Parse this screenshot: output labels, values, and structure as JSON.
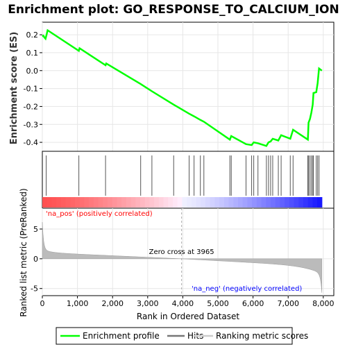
{
  "chart_data": {
    "type": "line",
    "title": "Enrichment plot: GO_RESPONSE_TO_CALCIUM_ION",
    "top_panel": {
      "ylabel": "Enrichment score (ES)",
      "ylim": [
        -0.45,
        0.27
      ],
      "yticks": [
        "0.2",
        "0.1",
        "0.0",
        "-0.1",
        "-0.2",
        "-0.3",
        "-0.4"
      ],
      "ytick_values": [
        0.2,
        0.1,
        0.0,
        -0.1,
        -0.2,
        -0.3,
        -0.4
      ],
      "grid": true,
      "series": [
        {
          "name": "Enrichment profile",
          "color": "#00ff00",
          "x": [
            0,
            30,
            60,
            90,
            120,
            150,
            1040,
            1060,
            1800,
            1820,
            2800,
            3120,
            3740,
            4180,
            4320,
            4500,
            4600,
            5340,
            5380,
            5800,
            5960,
            6020,
            6140,
            6380,
            6440,
            6500,
            6560,
            6720,
            6800,
            7060,
            7140,
            7560,
            7580,
            7620,
            7660,
            7700,
            7720,
            7800,
            7840,
            7880,
            7960
          ],
          "y": [
            0.19,
            0.195,
            0.185,
            0.178,
            0.2,
            0.225,
            0.11,
            0.125,
            0.03,
            0.04,
            -0.075,
            -0.115,
            -0.19,
            -0.24,
            -0.255,
            -0.275,
            -0.285,
            -0.385,
            -0.365,
            -0.41,
            -0.415,
            -0.4,
            -0.405,
            -0.42,
            -0.4,
            -0.395,
            -0.38,
            -0.39,
            -0.36,
            -0.38,
            -0.33,
            -0.385,
            -0.29,
            -0.27,
            -0.235,
            -0.19,
            -0.125,
            -0.12,
            -0.07,
            0.012,
            0.0
          ]
        }
      ]
    },
    "hits_panel": {
      "hit_positions": [
        110,
        1040,
        1800,
        2800,
        3120,
        3740,
        4180,
        4320,
        4500,
        4600,
        5340,
        5380,
        5800,
        5960,
        6020,
        6140,
        6380,
        6440,
        6500,
        6560,
        6720,
        6800,
        7060,
        7140,
        7560,
        7580,
        7620,
        7660,
        7700,
        7720,
        7800,
        7840,
        7880
      ]
    },
    "ranked_panel": {
      "ylabel": "Ranked list metric (PreRanked)",
      "ylim": [
        -6.2,
        8.5
      ],
      "yticks": [
        "5",
        "0",
        "-5"
      ],
      "ytick_values": [
        5,
        0,
        -5
      ],
      "zero_cross": 3965,
      "zero_cross_label": "Zero cross at 3965",
      "pos_label": "'na_pos' (positively correlated)",
      "neg_label": "'na_neg' (negatively correlated)",
      "pos_color": "#ff0000",
      "neg_color": "#0000ff"
    },
    "xlabel": "Rank in Ordered Dataset",
    "xlim": [
      0,
      8300
    ],
    "xticks": [
      "0",
      "1,000",
      "2,000",
      "3,000",
      "4,000",
      "5,000",
      "6,000",
      "7,000",
      "8,000"
    ],
    "xtick_values": [
      0,
      1000,
      2000,
      3000,
      4000,
      5000,
      6000,
      7000,
      8000
    ],
    "n_genes": 7960,
    "legend": [
      {
        "label": "Enrichment profile",
        "color": "#00ff00"
      },
      {
        "label": "Hits",
        "color": "#777777"
      },
      {
        "label": "Ranking metric scores",
        "color": "#cccccc"
      }
    ]
  }
}
